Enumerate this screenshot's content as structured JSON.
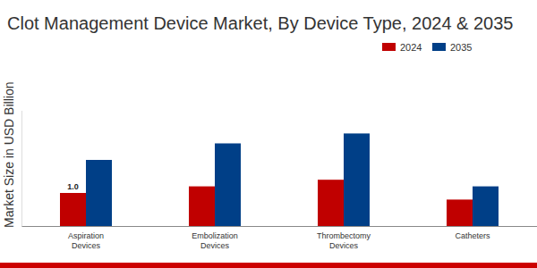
{
  "chart_data": {
    "type": "bar",
    "title": "Clot Management Device Market, By Device Type, 2024 & 2035",
    "y_label": "Market Size in USD Billion",
    "categories": [
      "Aspiration Devices",
      "Embolization Devices",
      "Thrombectomy Devices",
      "Catheters"
    ],
    "series": [
      {
        "name": "2024",
        "color": "#c00000",
        "values": [
          1.0,
          1.2,
          1.4,
          0.8
        ],
        "value_labels": [
          "1.0",
          null,
          null,
          null
        ]
      },
      {
        "name": "2035",
        "color": "#003f87",
        "values": [
          2.0,
          2.5,
          2.8,
          1.2
        ]
      }
    ],
    "ylim": [
      0,
      3.5
    ],
    "yticks": [],
    "tick_labels": "x",
    "legend": "top-right"
  }
}
